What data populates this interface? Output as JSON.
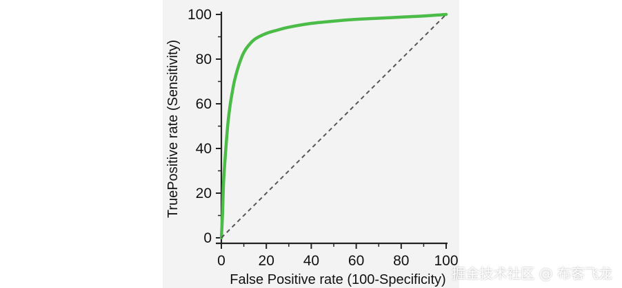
{
  "chart_data": {
    "type": "line",
    "xlabel": "False Positive rate (100-Specificity)",
    "ylabel": "TruePositive rate (Sensitivity)",
    "xlim": [
      0,
      100
    ],
    "ylim": [
      0,
      100
    ],
    "x_ticks": [
      0,
      20,
      40,
      60,
      80,
      100
    ],
    "y_ticks": [
      0,
      20,
      40,
      60,
      80,
      100
    ],
    "grid": false,
    "series": [
      {
        "style": "solid",
        "color": "#4cbc48",
        "points": [
          [
            0,
            0
          ],
          [
            0.5,
            10
          ],
          [
            1,
            25
          ],
          [
            2,
            40
          ],
          [
            3,
            52
          ],
          [
            4,
            60
          ],
          [
            5,
            66
          ],
          [
            6,
            71
          ],
          [
            8,
            78
          ],
          [
            10,
            83
          ],
          [
            12,
            86
          ],
          [
            15,
            89
          ],
          [
            20,
            91.5
          ],
          [
            25,
            93
          ],
          [
            30,
            94.3
          ],
          [
            40,
            96
          ],
          [
            50,
            97
          ],
          [
            60,
            97.8
          ],
          [
            70,
            98.3
          ],
          [
            80,
            98.8
          ],
          [
            90,
            99.3
          ],
          [
            100,
            100
          ]
        ]
      },
      {
        "style": "dashed",
        "color": "#555555",
        "points": [
          [
            0,
            0
          ],
          [
            100,
            100
          ]
        ]
      }
    ]
  },
  "watermark": "掘金技术社区 @ 布客飞龙"
}
